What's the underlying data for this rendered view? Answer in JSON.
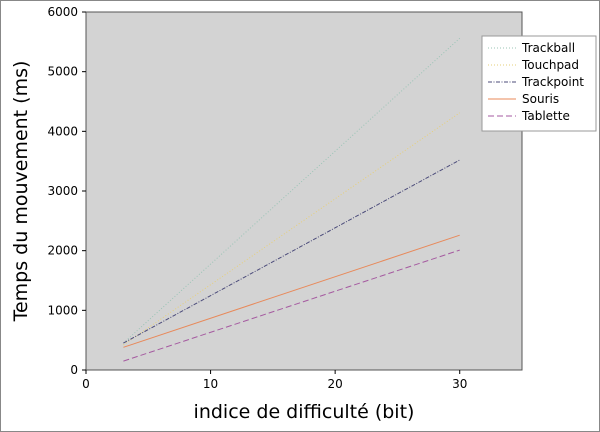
{
  "chart_data": {
    "type": "line",
    "title": "",
    "xlabel": "indice de difficulté (bit)",
    "ylabel": "Temps du mouvement (ms)",
    "xlim": [
      0,
      35
    ],
    "ylim": [
      0,
      6000
    ],
    "xticks": [
      0,
      10,
      20,
      30
    ],
    "yticks": [
      0,
      1000,
      2000,
      3000,
      4000,
      5000,
      6000
    ],
    "grid": false,
    "legend_position": "top-right",
    "background": "#d3d3d3",
    "series": [
      {
        "name": "Trackball",
        "x": [
          3,
          30
        ],
        "y": [
          450,
          5560
        ],
        "color": "#9bc4b6",
        "dash": "1,2"
      },
      {
        "name": "Touchpad",
        "x": [
          3,
          30
        ],
        "y": [
          420,
          4310
        ],
        "color": "#e6cf7a",
        "dash": "1,2"
      },
      {
        "name": "Trackpoint",
        "x": [
          3,
          30
        ],
        "y": [
          450,
          3520
        ],
        "color": "#4b4b7a",
        "dash": "4,1.5,1,1.5"
      },
      {
        "name": "Souris",
        "x": [
          3,
          30
        ],
        "y": [
          380,
          2260
        ],
        "color": "#e8895a",
        "dash": ""
      },
      {
        "name": "Tablette",
        "x": [
          3,
          30
        ],
        "y": [
          150,
          2010
        ],
        "color": "#a55aa0",
        "dash": "6,3"
      }
    ]
  }
}
